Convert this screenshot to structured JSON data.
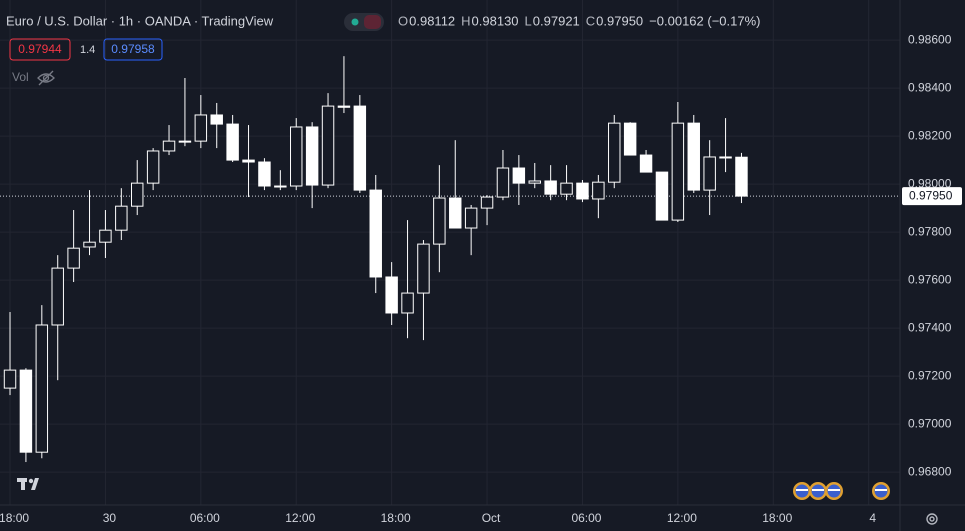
{
  "chart_data": {
    "type": "candlestick",
    "title": "Euro / U.S. Dollar · 1h · OANDA · TradingView",
    "ohlc_legend": [
      {
        "label": "O",
        "value": "0.98112"
      },
      {
        "label": "H",
        "value": "0.98130"
      },
      {
        "label": "L",
        "value": "0.97921"
      },
      {
        "label": "C",
        "value": "0.97950"
      }
    ],
    "change": "−0.00162 (−0.17%)",
    "sell_price": "0.97944",
    "spread": "1.4",
    "buy_price": "0.97958",
    "volume_label": "Vol",
    "last_price": {
      "value": 0.9795,
      "label": "0.97950"
    },
    "open": [
      0.9715,
      0.97225,
      0.96883,
      0.97413,
      0.9765,
      0.97738,
      0.97758,
      0.97808,
      0.97908,
      0.98004,
      0.98138,
      0.98175,
      0.98179,
      0.98288,
      0.9825,
      0.981,
      0.98092,
      0.97992,
      0.97992,
      0.98238,
      0.97996,
      0.98325,
      0.98325,
      0.97975,
      0.97613,
      0.97463,
      0.97546,
      0.9775,
      0.97942,
      0.97817,
      0.979,
      0.97946,
      0.98067,
      0.98004,
      0.98013,
      0.97958,
      0.98004,
      0.97938,
      0.98008,
      0.98254,
      0.98121,
      0.9805,
      0.9785,
      0.98254,
      0.97975,
      0.98113,
      0.98112
    ],
    "high": [
      0.97467,
      0.97233,
      0.97496,
      0.97704,
      0.97892,
      0.97975,
      0.97892,
      0.97983,
      0.981,
      0.9815,
      0.98246,
      0.98442,
      0.98371,
      0.98338,
      0.98288,
      0.98246,
      0.98108,
      0.98058,
      0.98275,
      0.98258,
      0.98379,
      0.98533,
      0.98371,
      0.98038,
      0.97675,
      0.9785,
      0.97767,
      0.98079,
      0.98183,
      0.97913,
      0.97954,
      0.98142,
      0.98121,
      0.98088,
      0.98079,
      0.98079,
      0.98017,
      0.98038,
      0.98288,
      0.98258,
      0.98142,
      0.9805,
      0.98342,
      0.98288,
      0.98183,
      0.98275,
      0.9813
    ],
    "low": [
      0.97121,
      0.96842,
      0.96858,
      0.97183,
      0.97592,
      0.97704,
      0.97692,
      0.97767,
      0.97871,
      0.97975,
      0.98121,
      0.98158,
      0.9815,
      0.9815,
      0.98092,
      0.97946,
      0.97975,
      0.97975,
      0.97975,
      0.979,
      0.97983,
      0.98296,
      0.97963,
      0.97546,
      0.97413,
      0.97358,
      0.9735,
      0.97633,
      0.97817,
      0.97704,
      0.97829,
      0.97933,
      0.97913,
      0.97983,
      0.97933,
      0.97933,
      0.97925,
      0.97858,
      0.97983,
      0.98121,
      0.9805,
      0.9785,
      0.97842,
      0.97963,
      0.97871,
      0.9805,
      0.97921
    ],
    "close": [
      0.97225,
      0.96883,
      0.97413,
      0.9765,
      0.97733,
      0.97758,
      0.97808,
      0.97908,
      0.98004,
      0.98138,
      0.98179,
      0.98179,
      0.98288,
      0.9825,
      0.981,
      0.98092,
      0.97992,
      0.97992,
      0.98238,
      0.97996,
      0.98325,
      0.9832,
      0.97975,
      0.97613,
      0.97463,
      0.97546,
      0.9775,
      0.97942,
      0.97817,
      0.979,
      0.97946,
      0.98067,
      0.98004,
      0.98013,
      0.97958,
      0.98004,
      0.97938,
      0.98008,
      0.98254,
      0.98121,
      0.9805,
      0.9785,
      0.98254,
      0.97975,
      0.98113,
      0.98113,
      0.9795
    ],
    "xlim": [
      -0.63,
      55.97
    ],
    "xticks": [
      {
        "value": 0,
        "label": "18:00"
      },
      {
        "value": 6,
        "label": "30"
      },
      {
        "value": 12,
        "label": "06:00"
      },
      {
        "value": 18,
        "label": "12:00"
      },
      {
        "value": 24,
        "label": "18:00"
      },
      {
        "value": 30,
        "label": "Oct"
      },
      {
        "value": 36,
        "label": "06:00"
      },
      {
        "value": 42,
        "label": "12:00"
      },
      {
        "value": 48,
        "label": "18:00"
      },
      {
        "value": 54,
        "label": "4"
      }
    ],
    "ylim": [
      0.96663,
      0.98767
    ],
    "yticks": [
      {
        "value": 0.968,
        "label": "0.96800"
      },
      {
        "value": 0.97,
        "label": "0.97000"
      },
      {
        "value": 0.972,
        "label": "0.97200"
      },
      {
        "value": 0.974,
        "label": "0.97400"
      },
      {
        "value": 0.976,
        "label": "0.97600"
      },
      {
        "value": 0.978,
        "label": "0.97800"
      },
      {
        "value": 0.98,
        "label": "0.98000"
      },
      {
        "value": 0.982,
        "label": "0.98200"
      },
      {
        "value": 0.984,
        "label": "0.98400"
      },
      {
        "value": 0.986,
        "label": "0.98600"
      }
    ],
    "grid": true,
    "colors": {
      "up_fill": "#161a25",
      "down_fill": "#ffffff",
      "border": "#ffffff",
      "grid": "#232632",
      "sell": "#f23645",
      "buy": "#2962ff"
    }
  }
}
